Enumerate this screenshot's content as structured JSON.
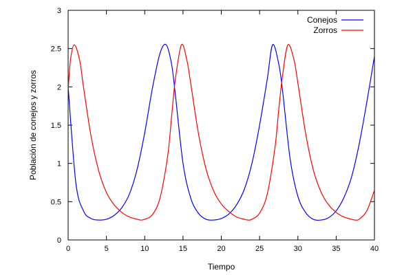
{
  "chart_data": {
    "type": "line",
    "title": "",
    "xlabel": "Tiempo",
    "ylabel": "Población de conejos y zorros",
    "xlim": [
      0,
      40
    ],
    "ylim": [
      0,
      3
    ],
    "xticks": [
      0,
      5,
      10,
      15,
      20,
      25,
      30,
      35,
      40
    ],
    "yticks": [
      0,
      0.5,
      1,
      1.5,
      2,
      2.5,
      3
    ],
    "xtick_labels": [
      "0",
      "5",
      "10",
      "15",
      "20",
      "25",
      "30",
      "35",
      "40"
    ],
    "ytick_labels": [
      "0",
      "0.5",
      "1",
      "1.5",
      "2",
      "2.5",
      "3"
    ],
    "grid": false,
    "legend_position": "top-right",
    "series": [
      {
        "name": "Conejos",
        "color": "#0000ff",
        "x": [
          0,
          1,
          2,
          3,
          4,
          5,
          6,
          7,
          8,
          9,
          10,
          11,
          12,
          12.8,
          13.5,
          14,
          15,
          16,
          17,
          18,
          19,
          20,
          21,
          22,
          23,
          24,
          25,
          26,
          26.7,
          27.5,
          28,
          29,
          30,
          31,
          32,
          33,
          34,
          35,
          36,
          37,
          38,
          39,
          40
        ],
        "y": [
          2.0,
          0.75,
          0.38,
          0.28,
          0.26,
          0.27,
          0.32,
          0.42,
          0.6,
          0.92,
          1.4,
          1.98,
          2.44,
          2.55,
          2.3,
          1.9,
          1.0,
          0.55,
          0.35,
          0.27,
          0.26,
          0.28,
          0.34,
          0.46,
          0.66,
          1.0,
          1.5,
          2.1,
          2.55,
          2.3,
          1.95,
          1.05,
          0.57,
          0.36,
          0.27,
          0.26,
          0.29,
          0.38,
          0.55,
          0.82,
          1.25,
          1.8,
          2.4
        ]
      },
      {
        "name": "Zorros",
        "color": "#ff0000",
        "x": [
          0,
          0.3,
          0.8,
          1.5,
          2,
          3,
          4,
          5,
          6,
          7,
          8,
          9,
          9.5,
          10,
          11,
          12,
          13,
          13.5,
          14,
          14.8,
          15.5,
          16,
          17,
          18,
          19,
          20,
          21,
          22,
          23,
          23.5,
          24,
          25,
          26,
          27,
          27.5,
          28,
          28.7,
          29.5,
          30,
          31,
          32,
          33,
          34,
          35,
          36,
          37,
          37.5,
          38,
          39,
          40
        ],
        "y": [
          1.95,
          2.35,
          2.55,
          2.35,
          2.0,
          1.35,
          0.9,
          0.62,
          0.46,
          0.36,
          0.3,
          0.27,
          0.26,
          0.27,
          0.33,
          0.55,
          1.1,
          1.6,
          2.1,
          2.55,
          2.35,
          2.05,
          1.4,
          0.93,
          0.64,
          0.47,
          0.37,
          0.3,
          0.27,
          0.26,
          0.27,
          0.35,
          0.6,
          1.2,
          1.7,
          2.15,
          2.55,
          2.35,
          2.05,
          1.4,
          0.92,
          0.63,
          0.46,
          0.36,
          0.3,
          0.27,
          0.26,
          0.27,
          0.38,
          0.65
        ]
      }
    ]
  }
}
